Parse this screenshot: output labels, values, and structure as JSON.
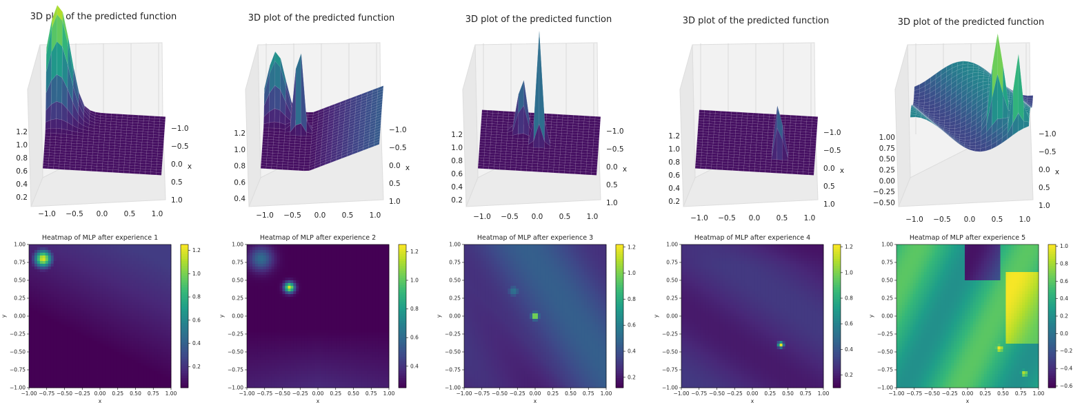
{
  "colors": {
    "viridis": [
      "#440154",
      "#482878",
      "#3e4989",
      "#31688e",
      "#26828e",
      "#1f9e89",
      "#35b779",
      "#6ece58",
      "#b5de2b",
      "#fde725"
    ],
    "pane": "#f2f2f2",
    "grid": "#d0d0d0"
  },
  "chart_data": [
    {
      "type": "surface3d",
      "title": "3D plot of the predicted function",
      "x_ticks": [
        "−1.0",
        "−0.5",
        "0.0",
        "0.5",
        "1.0"
      ],
      "y_ticks": [
        "−1.0",
        "−0.5",
        "0.0",
        "0.5",
        "1.0"
      ],
      "z_ticks": [
        "0.2",
        "0.4",
        "0.6",
        "0.8",
        "1.0",
        "1.2"
      ],
      "y_axis_label": "x",
      "features": [
        {
          "x": -0.8,
          "y": 0.8,
          "height": 1.2,
          "width": 0.2
        }
      ]
    },
    {
      "type": "surface3d",
      "title": "3D plot of the predicted function",
      "x_ticks": [
        "−1.0",
        "−0.5",
        "0.0",
        "0.5",
        "1.0"
      ],
      "y_ticks": [
        "−1.0",
        "−0.5",
        "0.0",
        "0.5",
        "1.0"
      ],
      "z_ticks": [
        "0.4",
        "0.6",
        "0.8",
        "1.0",
        "1.2"
      ],
      "y_axis_label": "x",
      "features": [
        {
          "x": -0.4,
          "y": 0.4,
          "height": 1.2,
          "width": 0.06
        },
        {
          "x": -0.8,
          "y": 0.8,
          "height": 0.7,
          "width": 0.15
        }
      ]
    },
    {
      "type": "surface3d",
      "title": "3D plot of the predicted function",
      "x_ticks": [
        "−1.0",
        "−0.5",
        "0.0",
        "0.5",
        "1.0"
      ],
      "y_ticks": [
        "−1.0",
        "−0.5",
        "0.0",
        "0.5",
        "1.0"
      ],
      "z_ticks": [
        "0.2",
        "0.4",
        "0.6",
        "0.8",
        "1.0",
        "1.2"
      ],
      "y_axis_label": "x",
      "features": [
        {
          "x": 0.0,
          "y": 0.0,
          "height": 1.2,
          "width": 0.05
        },
        {
          "x": -0.3,
          "y": 0.35,
          "height": 0.6,
          "width": 0.07
        }
      ]
    },
    {
      "type": "surface3d",
      "title": "3D plot of the predicted function",
      "x_ticks": [
        "−1.0",
        "−0.5",
        "0.0",
        "0.5",
        "1.0"
      ],
      "y_ticks": [
        "−1.0",
        "−0.5",
        "0.0",
        "0.5",
        "1.0"
      ],
      "z_ticks": [
        "0.2",
        "0.4",
        "0.6",
        "0.8",
        "1.0",
        "1.2"
      ],
      "y_axis_label": "x",
      "features": [
        {
          "x": 0.4,
          "y": -0.4,
          "height": 1.2,
          "width": 0.04
        }
      ]
    },
    {
      "type": "surface3d",
      "title": "3D plot of the predicted function",
      "x_ticks": [
        "−1.0",
        "−0.5",
        "0.0",
        "0.5",
        "1.0"
      ],
      "y_ticks": [
        "−1.0",
        "−0.5",
        "0.0",
        "0.5",
        "1.0"
      ],
      "z_ticks": [
        "−0.50",
        "−0.25",
        "0.00",
        "0.25",
        "0.50",
        "0.75",
        "1.00"
      ],
      "y_axis_label": "x",
      "features": [
        {
          "x": 0.45,
          "y": -0.45,
          "height": 1.0,
          "width": 0.08
        },
        {
          "x": 0.8,
          "y": -0.8,
          "height": 0.8,
          "width": 0.06
        }
      ]
    },
    {
      "type": "heatmap",
      "title": "Heatmap of MLP after experience 1",
      "xlabel": "x",
      "ylabel": "y",
      "xlim": [
        -1,
        1
      ],
      "ylim": [
        -1,
        1
      ],
      "x_ticks": [
        "−1.00",
        "−0.75",
        "−0.50",
        "−0.25",
        "0.00",
        "0.25",
        "0.50",
        "0.75",
        "1.00"
      ],
      "y_ticks": [
        "1.00",
        "0.75",
        "0.50",
        "0.25",
        "0.00",
        "−0.25",
        "−0.50",
        "−0.75",
        "−1.00"
      ],
      "colorbar_range": [
        0.02,
        1.25
      ],
      "colorbar_ticks": [
        "1.2",
        "1.0",
        "0.8",
        "0.6",
        "0.4",
        "0.2"
      ],
      "features": [
        {
          "x": -0.8,
          "y": 0.8,
          "value": 1.2,
          "radius": 0.08
        }
      ]
    },
    {
      "type": "heatmap",
      "title": "Heatmap of MLP after experience 2",
      "xlabel": "x",
      "ylabel": "y",
      "xlim": [
        -1,
        1
      ],
      "ylim": [
        -1,
        1
      ],
      "x_ticks": [
        "−1.00",
        "−0.75",
        "−0.50",
        "−0.25",
        "0.00",
        "0.25",
        "0.50",
        "0.75",
        "1.00"
      ],
      "y_ticks": [
        "1.00",
        "0.75",
        "0.50",
        "0.25",
        "0.00",
        "−0.25",
        "−0.50",
        "−0.75",
        "−1.00"
      ],
      "colorbar_range": [
        0.25,
        1.25
      ],
      "colorbar_ticks": [
        "1.2",
        "1.0",
        "0.8",
        "0.6",
        "0.4"
      ],
      "features": [
        {
          "x": -0.4,
          "y": 0.4,
          "value": 1.2,
          "radius": 0.05
        },
        {
          "x": -0.8,
          "y": 0.8,
          "value": 0.6,
          "radius": 0.12
        }
      ]
    },
    {
      "type": "heatmap",
      "title": "Heatmap of MLP after experience 3",
      "xlabel": "x",
      "ylabel": "y",
      "xlim": [
        -1,
        1
      ],
      "ylim": [
        -1,
        1
      ],
      "x_ticks": [
        "−1.00",
        "−0.75",
        "−0.50",
        "−0.25",
        "0.00",
        "0.25",
        "0.50",
        "0.75",
        "1.00"
      ],
      "y_ticks": [
        "1.00",
        "0.75",
        "0.50",
        "0.25",
        "0.00",
        "−0.25",
        "−0.50",
        "−0.75",
        "−1.00"
      ],
      "colorbar_range": [
        0.12,
        1.22
      ],
      "colorbar_ticks": [
        "1.2",
        "1.0",
        "0.8",
        "0.6",
        "0.4",
        "0.2"
      ],
      "features": [
        {
          "x": 0.0,
          "y": 0.0,
          "value": 1.2,
          "radius": 0.04
        },
        {
          "x": -0.3,
          "y": 0.35,
          "value": 0.55,
          "radius": 0.07
        }
      ]
    },
    {
      "type": "heatmap",
      "title": "Heatmap of MLP after experience 4",
      "xlabel": "x",
      "ylabel": "y",
      "xlim": [
        -1,
        1
      ],
      "ylim": [
        -1,
        1
      ],
      "x_ticks": [
        "−1.00",
        "−0.75",
        "−0.50",
        "−0.25",
        "0.00",
        "0.25",
        "0.50",
        "0.75",
        "1.00"
      ],
      "y_ticks": [
        "1.00",
        "0.75",
        "0.50",
        "0.25",
        "0.00",
        "−0.25",
        "−0.50",
        "−0.75",
        "−1.00"
      ],
      "colorbar_range": [
        0.1,
        1.22
      ],
      "colorbar_ticks": [
        "1.2",
        "1.0",
        "0.8",
        "0.6",
        "0.4",
        "0.2"
      ],
      "features": [
        {
          "x": 0.4,
          "y": -0.4,
          "value": 1.2,
          "radius": 0.03
        }
      ]
    },
    {
      "type": "heatmap",
      "title": "Heatmap of MLP after experience 5",
      "xlabel": "x",
      "ylabel": "y",
      "xlim": [
        -1,
        1
      ],
      "ylim": [
        -1,
        1
      ],
      "x_ticks": [
        "−1.00",
        "−0.75",
        "−0.50",
        "−0.25",
        "0.00",
        "0.25",
        "0.50",
        "0.75",
        "1.00"
      ],
      "y_ticks": [
        "1.00",
        "0.75",
        "0.50",
        "0.25",
        "0.00",
        "−0.25",
        "−0.50",
        "−0.75",
        "−1.00"
      ],
      "colorbar_range": [
        -0.62,
        1.02
      ],
      "colorbar_ticks": [
        "1.0",
        "0.8",
        "0.6",
        "0.4",
        "0.2",
        "0.0",
        "−0.2",
        "−0.4",
        "−0.6"
      ],
      "features": [
        {
          "x": 0.45,
          "y": -0.45,
          "value": 1.0,
          "radius": 0.06
        },
        {
          "x": 0.8,
          "y": -0.8,
          "value": 0.9,
          "radius": 0.05
        }
      ]
    }
  ]
}
